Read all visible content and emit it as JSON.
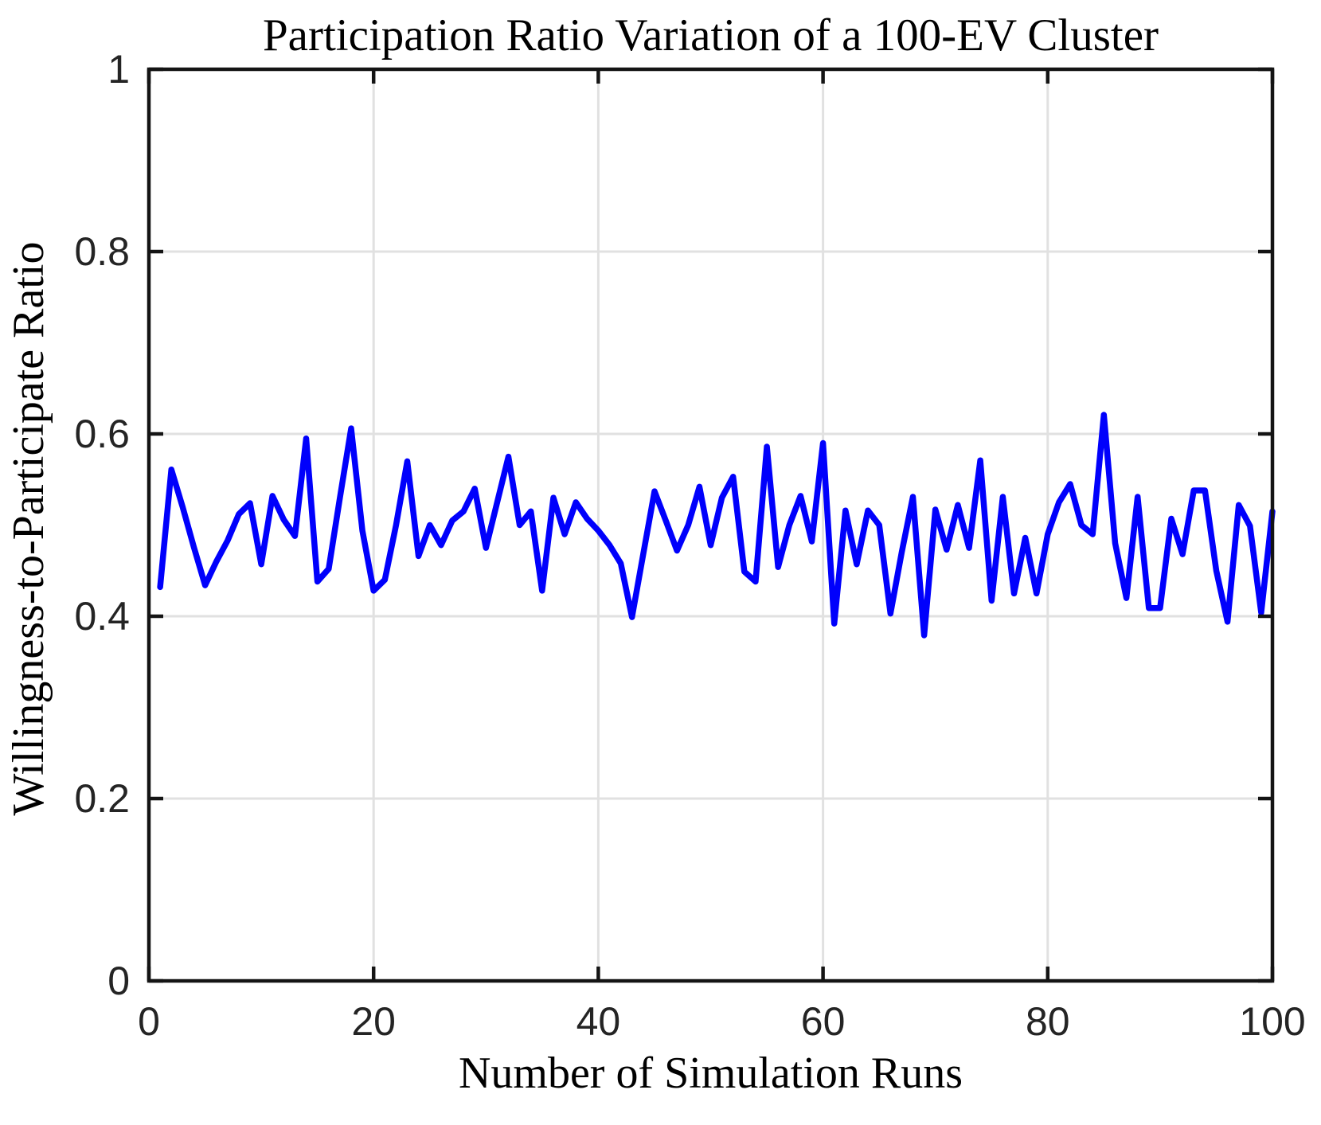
{
  "chart_data": {
    "type": "line",
    "title": "Participation Ratio Variation of a 100-EV Cluster",
    "xlabel": "Number of Simulation Runs",
    "ylabel": "Willingness-to-Participate Ratio",
    "xlim": [
      0,
      100
    ],
    "ylim": [
      0,
      1
    ],
    "x_ticks": [
      0,
      20,
      40,
      60,
      80,
      100
    ],
    "y_ticks": [
      0,
      0.2,
      0.4,
      0.6,
      0.8,
      1
    ],
    "x_tick_labels": [
      "0",
      "20",
      "40",
      "60",
      "80",
      "100"
    ],
    "y_tick_labels": [
      "0",
      "0.2",
      "0.4",
      "0.6",
      "0.8",
      "1"
    ],
    "grid": true,
    "legend": "none",
    "x_start": 1,
    "x_step": 1,
    "series": [
      {
        "name": "willingness-to-participate-ratio",
        "values": [
          0.432,
          0.561,
          0.52,
          0.476,
          0.434,
          0.46,
          0.483,
          0.512,
          0.524,
          0.457,
          0.532,
          0.506,
          0.488,
          0.595,
          0.438,
          0.452,
          0.53,
          0.606,
          0.494,
          0.428,
          0.44,
          0.5,
          0.57,
          0.466,
          0.5,
          0.478,
          0.505,
          0.515,
          0.54,
          0.475,
          0.525,
          0.575,
          0.5,
          0.515,
          0.428,
          0.53,
          0.49,
          0.525,
          0.507,
          0.494,
          0.478,
          0.458,
          0.399,
          0.468,
          0.537,
          0.505,
          0.472,
          0.5,
          0.542,
          0.478,
          0.53,
          0.553,
          0.449,
          0.438,
          0.586,
          0.454,
          0.5,
          0.532,
          0.482,
          0.59,
          0.392,
          0.516,
          0.457,
          0.516,
          0.5,
          0.403,
          0.47,
          0.531,
          0.379,
          0.517,
          0.473,
          0.522,
          0.475,
          0.571,
          0.417,
          0.531,
          0.425,
          0.486,
          0.425,
          0.49,
          0.525,
          0.545,
          0.5,
          0.49,
          0.621,
          0.48,
          0.42,
          0.531,
          0.409,
          0.409,
          0.507,
          0.468,
          0.538,
          0.538,
          0.45,
          0.394,
          0.522,
          0.499,
          0.404,
          0.515
        ]
      }
    ],
    "colors": {
      "line": "#0000FC",
      "grid": "#E1E1E1",
      "axis": "#141414",
      "tick_label": "#242424",
      "text": "#000000",
      "background": "#FFFFFF"
    }
  }
}
